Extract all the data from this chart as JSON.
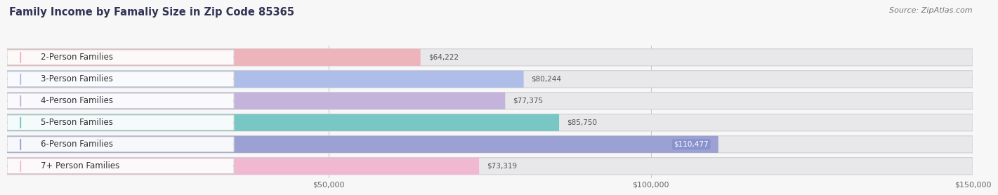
{
  "title": "Family Income by Famaliy Size in Zip Code 85365",
  "source": "Source: ZipAtlas.com",
  "categories": [
    "2-Person Families",
    "3-Person Families",
    "4-Person Families",
    "5-Person Families",
    "6-Person Families",
    "7+ Person Families"
  ],
  "values": [
    64222,
    80244,
    77375,
    85750,
    110477,
    73319
  ],
  "labels": [
    "$64,222",
    "$80,244",
    "$77,375",
    "$85,750",
    "$110,477",
    "$73,319"
  ],
  "bar_colors": [
    "#F0A8B0",
    "#A0B4E8",
    "#BBA8D8",
    "#5CBFBC",
    "#8890CC",
    "#F4AECB"
  ],
  "label_bg_colors": [
    "#F0A8B0",
    "#A0B4E8",
    "#BBA8D8",
    "#5CBFBC",
    "#8890CC",
    "#F4AECB"
  ],
  "xmax": 150000,
  "xtick_positions": [
    50000,
    100000,
    150000
  ],
  "xtick_labels": [
    "$50,000",
    "$100,000",
    "$150,000"
  ],
  "bg_color": "#f7f7f7",
  "bar_bg_color": "#e8e8ea",
  "title_color": "#333355",
  "source_color": "#777777",
  "cat_text_color": "#333333",
  "value_outside_color": "#555555",
  "value_inside_color": "#ffffff",
  "title_fontsize": 10.5,
  "source_fontsize": 8,
  "label_fontsize": 7.5,
  "cat_fontsize": 8.5,
  "tick_fontsize": 8
}
